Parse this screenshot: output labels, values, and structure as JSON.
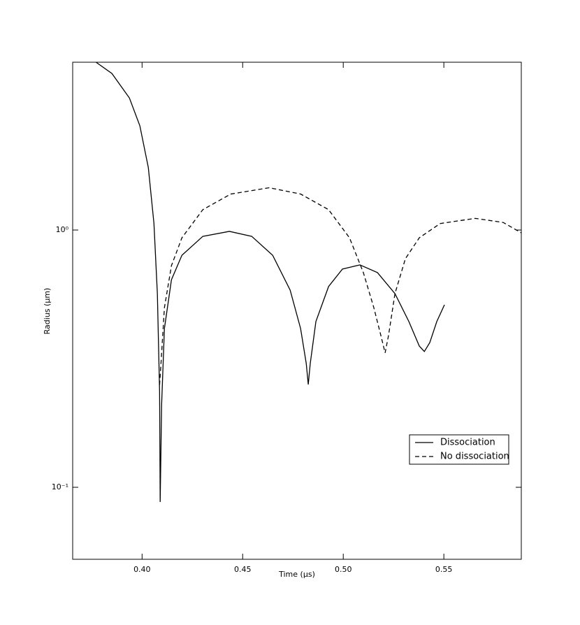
{
  "chart_data": {
    "type": "line",
    "xlabel": "Time (µs)",
    "ylabel": "Radius (µm)",
    "yscale": "log",
    "xlim": [
      0.3655,
      0.5885
    ],
    "ylim": [
      0.0525,
      4.49
    ],
    "xticks": [
      {
        "value": 0.4,
        "label": "0.40"
      },
      {
        "value": 0.45,
        "label": "0.45"
      },
      {
        "value": 0.5,
        "label": "0.50"
      },
      {
        "value": 0.55,
        "label": "0.55"
      }
    ],
    "yticks": [
      {
        "value": 0.1,
        "label": "10⁻¹"
      },
      {
        "value": 1,
        "label": "10⁰"
      }
    ],
    "legend": "lower right",
    "series": [
      {
        "name": "Dissociation",
        "color": "#000000",
        "linestyle": "solid",
        "x": [
          0.3771,
          0.385,
          0.3937,
          0.3989,
          0.4031,
          0.4059,
          0.4076,
          0.4087,
          0.409,
          0.4097,
          0.4111,
          0.4146,
          0.4198,
          0.4302,
          0.4434,
          0.4545,
          0.4649,
          0.4736,
          0.4788,
          0.4816,
          0.4826,
          0.4836,
          0.4864,
          0.4927,
          0.4996,
          0.5083,
          0.517,
          0.5257,
          0.5326,
          0.5378,
          0.5403,
          0.543,
          0.5465,
          0.5503
        ],
        "values": [
          4.49,
          4.06,
          3.26,
          2.54,
          1.75,
          1.06,
          0.566,
          0.236,
          0.0877,
          0.208,
          0.414,
          0.641,
          0.798,
          0.945,
          0.988,
          0.945,
          0.798,
          0.584,
          0.414,
          0.303,
          0.251,
          0.303,
          0.441,
          0.603,
          0.705,
          0.732,
          0.683,
          0.566,
          0.441,
          0.354,
          0.337,
          0.365,
          0.441,
          0.512
        ]
      },
      {
        "name": "No dissociation",
        "color": "#000000",
        "linestyle": "dashed",
        "x": [
          0.4087,
          0.4094,
          0.4111,
          0.4146,
          0.4198,
          0.4302,
          0.4441,
          0.4632,
          0.4788,
          0.4927,
          0.5031,
          0.51,
          0.5152,
          0.5187,
          0.5208,
          0.5225,
          0.5257,
          0.5309,
          0.5378,
          0.5482,
          0.5656,
          0.5795,
          0.5885
        ],
        "values": [
          0.25,
          0.303,
          0.499,
          0.727,
          0.933,
          1.2,
          1.38,
          1.46,
          1.38,
          1.2,
          0.933,
          0.683,
          0.499,
          0.389,
          0.333,
          0.389,
          0.566,
          0.774,
          0.933,
          1.06,
          1.11,
          1.07,
          0.975
        ]
      }
    ]
  }
}
